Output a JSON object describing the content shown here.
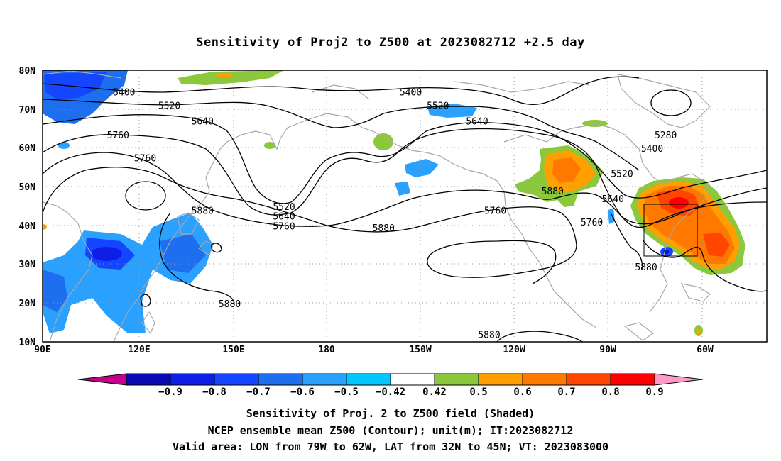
{
  "title": "Sensitivity of Proj2 to Z500 at 2023082712 +2.5 day",
  "lat_labels": [
    "80N",
    "70N",
    "60N",
    "50N",
    "40N",
    "30N",
    "20N",
    "10N"
  ],
  "lon_labels": [
    "90E",
    "120E",
    "150E",
    "180",
    "150W",
    "120W",
    "90W",
    "60W"
  ],
  "contour_labels": [
    {
      "text": "5400",
      "lon": 117,
      "lat": 73.5
    },
    {
      "text": "5520",
      "lon": 132,
      "lat": 70
    },
    {
      "text": "5640",
      "lon": 143,
      "lat": 66
    },
    {
      "text": "5760",
      "lon": 115,
      "lat": 62.5
    },
    {
      "text": "5760",
      "lon": 124,
      "lat": 56.5
    },
    {
      "text": "5880",
      "lon": 143,
      "lat": 43
    },
    {
      "text": "5880",
      "lon": 152,
      "lat": 19
    },
    {
      "text": "5400",
      "lon": -148,
      "lat": 73.5
    },
    {
      "text": "5520",
      "lon": -139,
      "lat": 70
    },
    {
      "text": "5640",
      "lon": -126,
      "lat": 66
    },
    {
      "text": "5520",
      "lon": 170,
      "lat": 44
    },
    {
      "text": "5640",
      "lon": 170,
      "lat": 41.5
    },
    {
      "text": "5760",
      "lon": 170,
      "lat": 39
    },
    {
      "text": "5880",
      "lon": -157,
      "lat": 38.5
    },
    {
      "text": "5760",
      "lon": -120,
      "lat": 43
    },
    {
      "text": "5880",
      "lon": -101,
      "lat": 48
    },
    {
      "text": "5280",
      "lon": -63.5,
      "lat": 62.5
    },
    {
      "text": "5400",
      "lon": -68,
      "lat": 59
    },
    {
      "text": "5520",
      "lon": -78,
      "lat": 52.5
    },
    {
      "text": "5640",
      "lon": -81,
      "lat": 46
    },
    {
      "text": "5760",
      "lon": -88,
      "lat": 40
    },
    {
      "text": "5880",
      "lon": -70,
      "lat": 28.5
    },
    {
      "text": "5880",
      "lon": -122,
      "lat": 11
    }
  ],
  "colorbar": {
    "labels": [
      "-0.9",
      "-0.8",
      "-0.7",
      "-0.6",
      "-0.5",
      "-0.42",
      "0.42",
      "0.5",
      "0.6",
      "0.7",
      "0.8",
      "0.9"
    ],
    "colors": [
      "#c4008a",
      "#0a0ab4",
      "#0f1ee6",
      "#1446ff",
      "#1e6ef0",
      "#2aa0ff",
      "#00c8ff",
      "#ffffff",
      "#8cc83c",
      "#ffa000",
      "#ff7800",
      "#ff4600",
      "#ff0000",
      "#ff9ac8"
    ]
  },
  "caption_lines": [
    "Sensitivity of Proj. 2 to Z500 field (Shaded)",
    "NCEP ensemble mean Z500 (Contour); unit(m); IT:2023082712",
    "Valid area: LON from 79W to 62W, LAT from 32N to 45N; VT: 2023083000"
  ]
}
